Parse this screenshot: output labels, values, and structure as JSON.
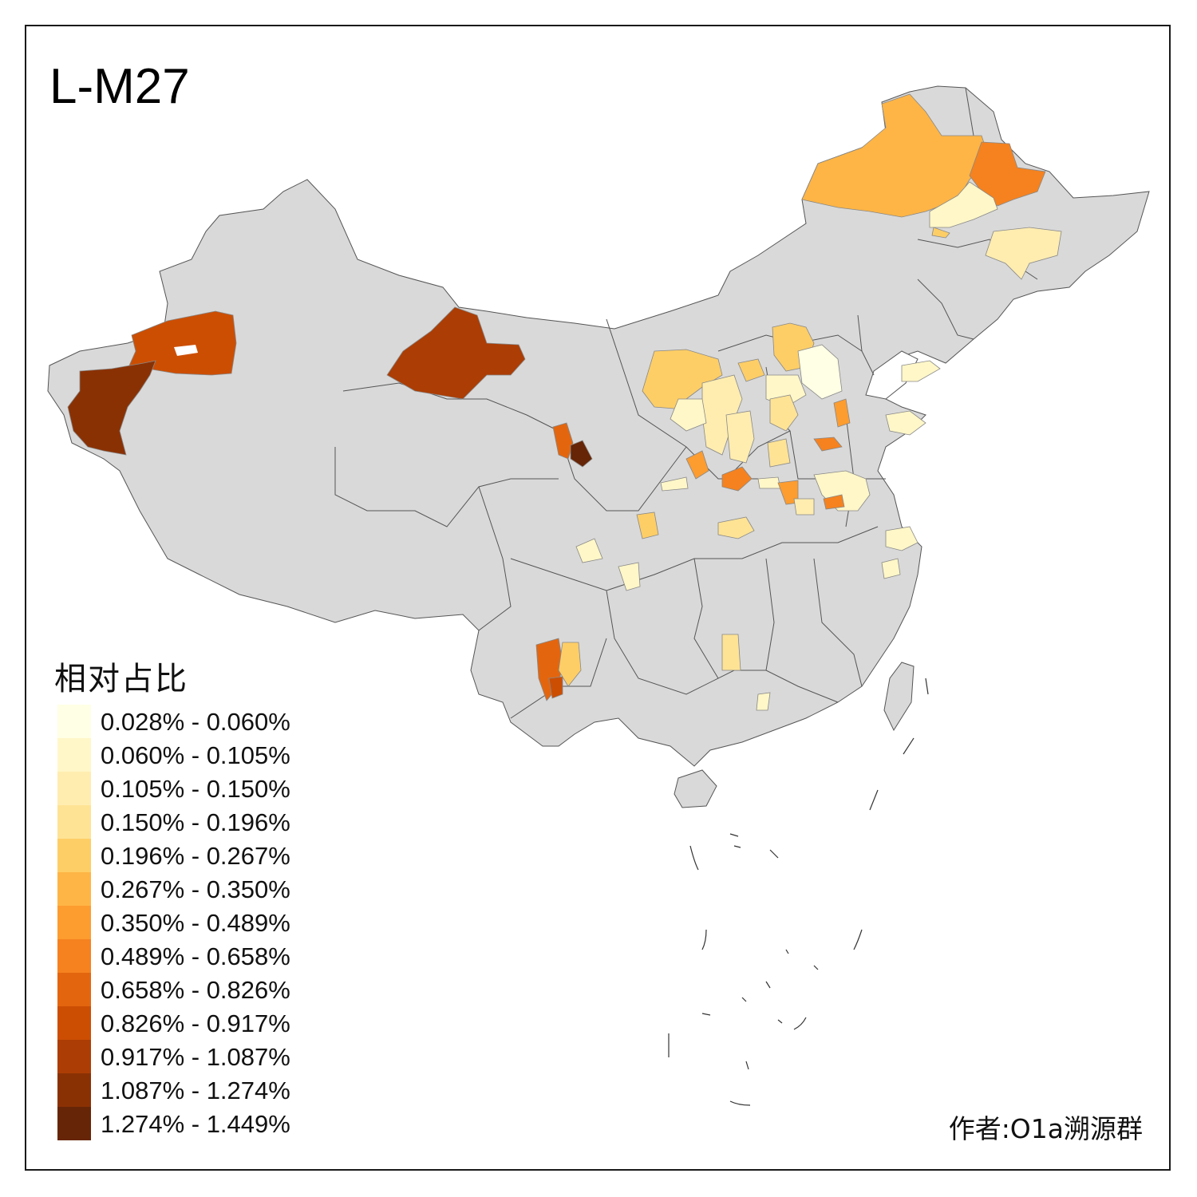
{
  "title": "L-M27",
  "legend": {
    "title": "相对占比",
    "bins": [
      {
        "label": "0.028% - 0.060%",
        "color": "#ffffe5"
      },
      {
        "label": "0.060% - 0.105%",
        "color": "#fff7c8"
      },
      {
        "label": "0.105% - 0.150%",
        "color": "#ffedb0"
      },
      {
        "label": "0.150% - 0.196%",
        "color": "#fee395"
      },
      {
        "label": "0.196% - 0.267%",
        "color": "#fece66"
      },
      {
        "label": "0.267% - 0.350%",
        "color": "#feb545"
      },
      {
        "label": "0.350% - 0.489%",
        "color": "#fd9c2f"
      },
      {
        "label": "0.489% - 0.658%",
        "color": "#f5821f"
      },
      {
        "label": "0.658% - 0.826%",
        "color": "#e3660f"
      },
      {
        "label": "0.826% - 0.917%",
        "color": "#cc4e03"
      },
      {
        "label": "0.917% - 1.087%",
        "color": "#ac3d04"
      },
      {
        "label": "1.087% - 1.274%",
        "color": "#8a3104"
      },
      {
        "label": "1.274% - 1.449%",
        "color": "#662506"
      }
    ]
  },
  "credit": "作者:O1a溯源群",
  "map": {
    "base_color": "#d9d9d9",
    "border_color": "#555555"
  }
}
